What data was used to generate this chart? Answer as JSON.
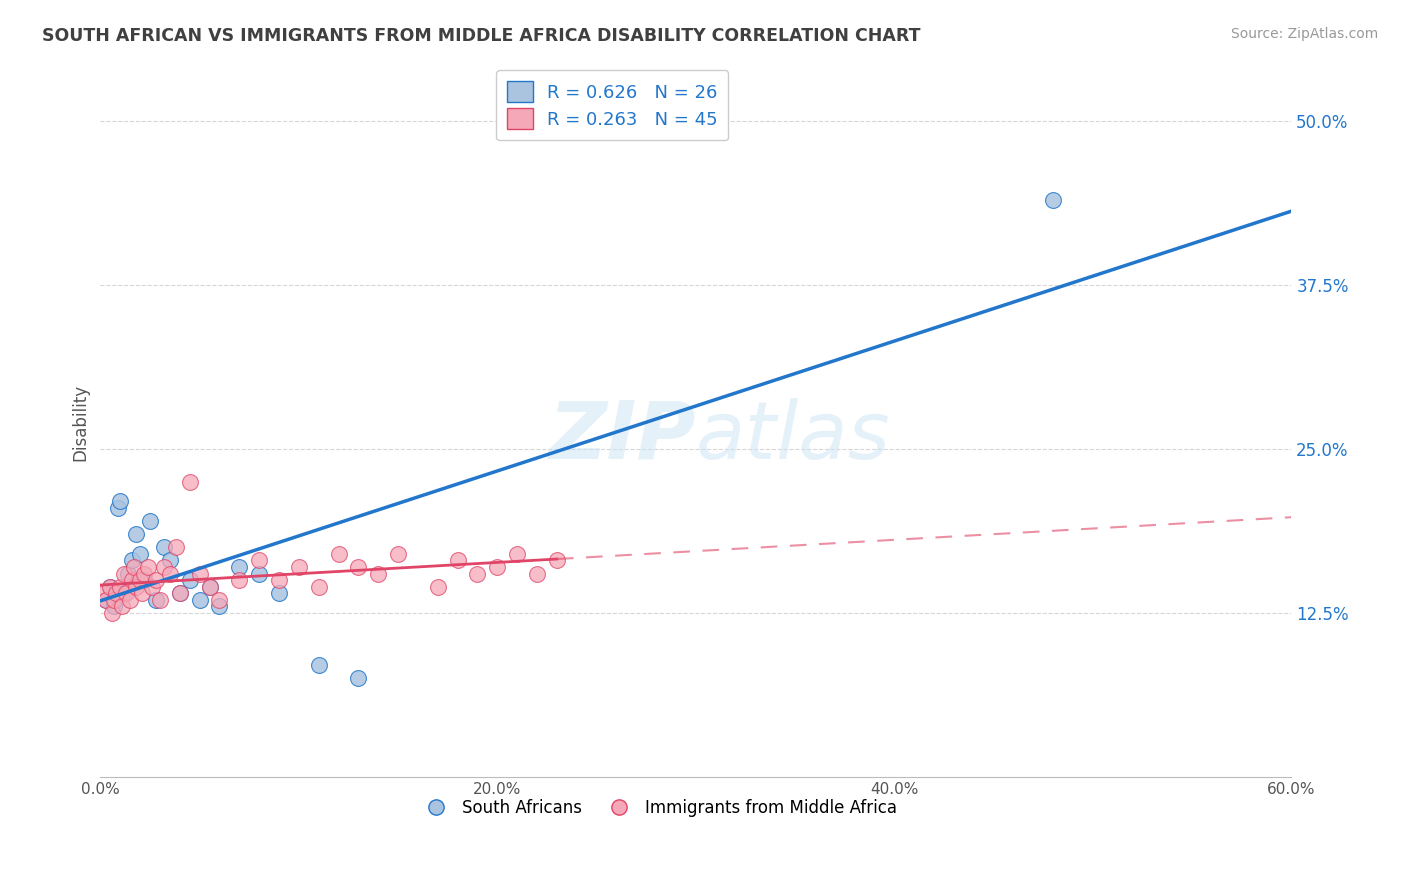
{
  "title": "SOUTH AFRICAN VS IMMIGRANTS FROM MIDDLE AFRICA DISABILITY CORRELATION CHART",
  "source": "Source: ZipAtlas.com",
  "ylabel": "Disability",
  "legend_label1": "R = 0.626   N = 26",
  "legend_label2": "R = 0.263   N = 45",
  "legend_bottom1": "South Africans",
  "legend_bottom2": "Immigrants from Middle Africa",
  "color_blue": "#aac4e0",
  "color_pink": "#f5a8b8",
  "line_blue": "#2277cc",
  "line_pink": "#e04466",
  "background": "#ffffff",
  "grid_color": "#cccccc",
  "title_color": "#404040",
  "blue_scatter_x": [
    0.3,
    0.5,
    0.7,
    0.9,
    1.0,
    1.2,
    1.4,
    1.6,
    1.8,
    2.0,
    2.2,
    2.5,
    2.8,
    3.2,
    3.5,
    4.0,
    4.5,
    5.0,
    5.5,
    6.0,
    7.0,
    8.0,
    9.0,
    11.0,
    13.0,
    48.0
  ],
  "blue_scatter_y": [
    13.5,
    14.5,
    13.0,
    20.5,
    21.0,
    14.0,
    15.5,
    16.5,
    18.5,
    17.0,
    15.0,
    19.5,
    13.5,
    17.5,
    16.5,
    14.0,
    15.0,
    13.5,
    14.5,
    13.0,
    16.0,
    15.5,
    14.0,
    8.5,
    7.5,
    44.0
  ],
  "pink_scatter_x": [
    0.2,
    0.3,
    0.5,
    0.6,
    0.7,
    0.8,
    1.0,
    1.1,
    1.2,
    1.3,
    1.5,
    1.6,
    1.7,
    1.8,
    2.0,
    2.1,
    2.2,
    2.4,
    2.6,
    2.8,
    3.0,
    3.2,
    3.5,
    3.8,
    4.0,
    4.5,
    5.0,
    5.5,
    6.0,
    7.0,
    8.0,
    9.0,
    10.0,
    11.0,
    12.0,
    13.0,
    14.0,
    15.0,
    17.0,
    18.0,
    19.0,
    20.0,
    21.0,
    22.0,
    23.0
  ],
  "pink_scatter_y": [
    14.0,
    13.5,
    14.5,
    12.5,
    13.5,
    14.0,
    14.5,
    13.0,
    15.5,
    14.0,
    13.5,
    15.0,
    16.0,
    14.5,
    15.0,
    14.0,
    15.5,
    16.0,
    14.5,
    15.0,
    13.5,
    16.0,
    15.5,
    17.5,
    14.0,
    22.5,
    15.5,
    14.5,
    13.5,
    15.0,
    16.5,
    15.0,
    16.0,
    14.5,
    17.0,
    16.0,
    15.5,
    17.0,
    14.5,
    16.5,
    15.5,
    16.0,
    17.0,
    15.5,
    16.5
  ],
  "xlim": [
    0,
    60
  ],
  "ylim": [
    0,
    54
  ],
  "ytick_vals": [
    12.5,
    25.0,
    37.5,
    50.0
  ],
  "ytick_labels": [
    "12.5%",
    "25.0%",
    "37.5%",
    "50.0%"
  ],
  "xtick_vals": [
    0,
    20,
    40,
    60
  ],
  "xtick_labels": [
    "0.0%",
    "20.0%",
    "40.0%",
    "60.0%"
  ]
}
